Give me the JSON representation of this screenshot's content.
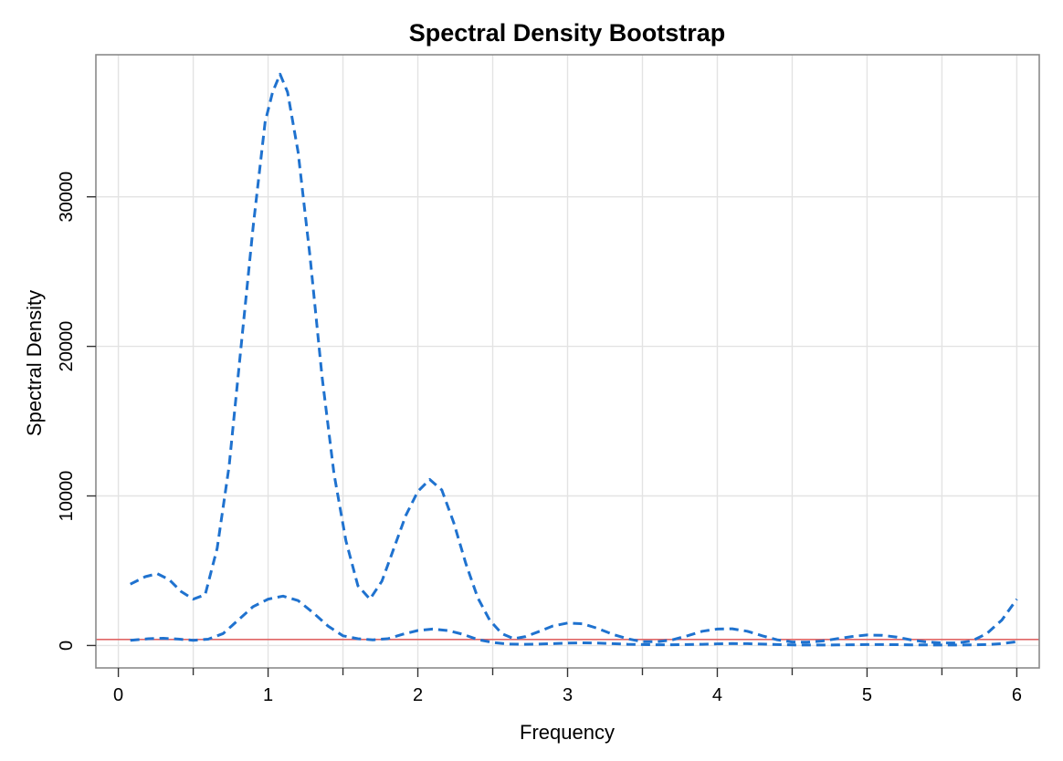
{
  "chart_data": {
    "type": "line",
    "title": "Spectral Density Bootstrap",
    "xlabel": "Frequency",
    "ylabel": "Spectral Density",
    "xlim": [
      -0.15,
      6.15
    ],
    "ylim": [
      -1500,
      39500
    ],
    "x_ticks": [
      0,
      1,
      2,
      3,
      4,
      5,
      6
    ],
    "x_tick_labels": [
      "0",
      "1",
      "2",
      "3",
      "4",
      "5",
      "6"
    ],
    "x_minor_ticks": [
      0.5,
      1.5,
      2.5,
      3.5,
      4.5,
      5.5
    ],
    "y_ticks": [
      0,
      10000,
      20000,
      30000
    ],
    "y_tick_labels": [
      "0",
      "10000",
      "20000",
      "30000"
    ],
    "grid": true,
    "reference_line": {
      "y": 400,
      "color": "#E06666"
    },
    "series": [
      {
        "style": "dashed",
        "color": "#1F72CF",
        "x": [
          0.08,
          0.18,
          0.26,
          0.34,
          0.42,
          0.5,
          0.58,
          0.66,
          0.74,
          0.82,
          0.9,
          0.98,
          1.03,
          1.08,
          1.13,
          1.2,
          1.28,
          1.36,
          1.44,
          1.52,
          1.6,
          1.68,
          1.76,
          1.84,
          1.92,
          2.0,
          2.08,
          2.16,
          2.24,
          2.32,
          2.4,
          2.48,
          2.56,
          2.64,
          2.72,
          2.8,
          2.9,
          3.0,
          3.1,
          3.2,
          3.3,
          3.4,
          3.5,
          3.6,
          3.7,
          3.8,
          3.9,
          4.0,
          4.1,
          4.2,
          4.3,
          4.4,
          4.5,
          4.6,
          4.7,
          4.8,
          4.9,
          5.0,
          5.1,
          5.2,
          5.3,
          5.4,
          5.5,
          5.6,
          5.7,
          5.8,
          5.9,
          6.0
        ],
        "values": [
          4100,
          4600,
          4800,
          4400,
          3600,
          3100,
          3400,
          6500,
          12000,
          20000,
          28000,
          35000,
          37000,
          38200,
          37000,
          33000,
          26000,
          18000,
          11500,
          7000,
          4000,
          3100,
          4300,
          6500,
          8700,
          10300,
          11100,
          10400,
          8200,
          5500,
          3200,
          1700,
          800,
          450,
          600,
          900,
          1300,
          1500,
          1450,
          1150,
          750,
          450,
          250,
          250,
          380,
          650,
          950,
          1100,
          1120,
          950,
          650,
          380,
          230,
          220,
          300,
          450,
          600,
          700,
          680,
          560,
          360,
          230,
          170,
          170,
          300,
          800,
          1700,
          3100
        ]
      },
      {
        "style": "dashed",
        "color": "#1F72CF",
        "x": [
          0.08,
          0.2,
          0.3,
          0.4,
          0.5,
          0.6,
          0.7,
          0.8,
          0.9,
          1.0,
          1.1,
          1.2,
          1.3,
          1.4,
          1.5,
          1.6,
          1.7,
          1.8,
          1.9,
          2.0,
          2.1,
          2.2,
          2.3,
          2.4,
          2.5,
          2.6,
          2.7,
          2.8,
          2.9,
          3.0,
          3.1,
          3.2,
          3.3,
          3.4,
          3.5,
          3.6,
          3.7,
          3.8,
          3.9,
          4.0,
          4.1,
          4.2,
          4.3,
          4.4,
          4.5,
          4.6,
          4.7,
          4.8,
          4.9,
          5.0,
          5.1,
          5.2,
          5.3,
          5.4,
          5.5,
          5.6,
          5.7,
          5.8,
          5.9,
          6.0
        ],
        "values": [
          350,
          450,
          480,
          430,
          350,
          420,
          800,
          1700,
          2600,
          3100,
          3300,
          3000,
          2200,
          1300,
          650,
          450,
          380,
          450,
          750,
          1000,
          1100,
          1000,
          750,
          400,
          200,
          100,
          80,
          90,
          120,
          160,
          180,
          160,
          120,
          80,
          60,
          50,
          50,
          60,
          80,
          110,
          130,
          120,
          90,
          60,
          40,
          30,
          30,
          40,
          50,
          60,
          60,
          55,
          45,
          35,
          30,
          30,
          40,
          60,
          120,
          250
        ]
      }
    ]
  }
}
